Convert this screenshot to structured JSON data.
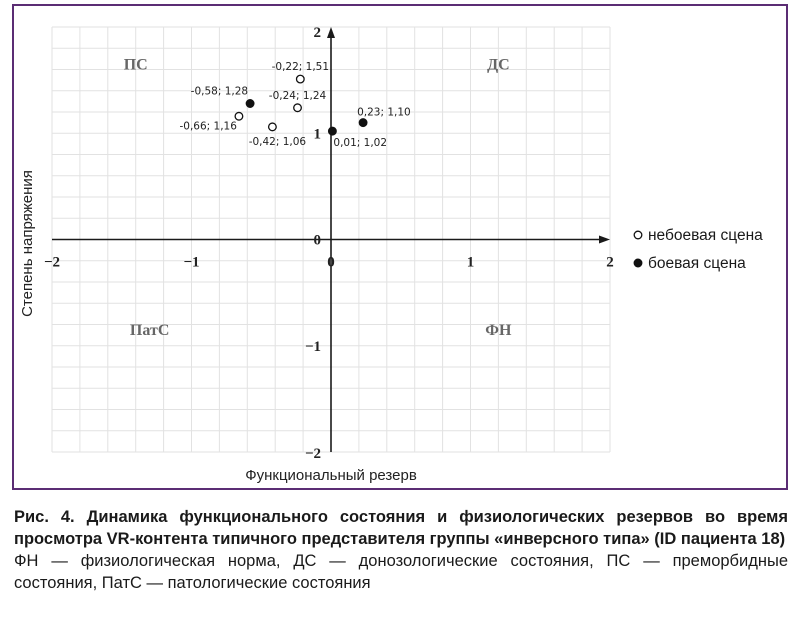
{
  "chart_data": {
    "type": "scatter",
    "title": "",
    "xlabel": "Функциональный резерв",
    "ylabel": "Степень напряжения",
    "xlim": [
      -2,
      2
    ],
    "ylim": [
      -2,
      2
    ],
    "x_ticks": [
      {
        "value": -2,
        "label": "−2"
      },
      {
        "value": -1,
        "label": "−1"
      },
      {
        "value": 0,
        "label": "0"
      },
      {
        "value": 1,
        "label": "1"
      },
      {
        "value": 2,
        "label": "2"
      }
    ],
    "y_ticks": [
      {
        "value": 2,
        "label": "2"
      },
      {
        "value": 1,
        "label": "1"
      },
      {
        "value": 0,
        "label": "0"
      },
      {
        "value": -1,
        "label": "−1"
      },
      {
        "value": -2,
        "label": "−2"
      }
    ],
    "grid": true,
    "legend_position": "right",
    "quadrant_labels": [
      {
        "text": "ПС",
        "x": -1.4,
        "y": 1.6
      },
      {
        "text": "ДС",
        "x": 1.2,
        "y": 1.6
      },
      {
        "text": "ПатС",
        "x": -1.3,
        "y": -0.9
      },
      {
        "text": "ФН",
        "x": 1.2,
        "y": -0.9
      }
    ],
    "series": [
      {
        "name": "небоевая сцена",
        "marker": "open-circle",
        "points": [
          {
            "x": -0.22,
            "y": 1.51,
            "label": "-0,22; 1,51",
            "label_side": "above"
          },
          {
            "x": -0.24,
            "y": 1.24,
            "label": "-0,24; 1,24",
            "label_side": "above"
          },
          {
            "x": -0.66,
            "y": 1.16,
            "label": "-0,66; 1,16",
            "label_side": "below-left"
          },
          {
            "x": -0.42,
            "y": 1.06,
            "label": "-0,42; 1,06",
            "label_side": "below"
          }
        ]
      },
      {
        "name": "боевая сцена",
        "marker": "filled-circle",
        "points": [
          {
            "x": -0.58,
            "y": 1.28,
            "label": "-0,58; 1,28",
            "label_side": "above-left"
          },
          {
            "x": 0.23,
            "y": 1.1,
            "label": "0,23; 1,10",
            "label_side": "above-right"
          },
          {
            "x": 0.01,
            "y": 1.02,
            "label": "0,01; 1,02",
            "label_side": "below-right"
          }
        ]
      }
    ],
    "colors": {
      "frame": "#5b2d74",
      "axis": "#1a1a1a",
      "grid": "#e2e2e2",
      "quadrant_label": "#666666",
      "marker": "#111111"
    }
  },
  "caption": {
    "title": "Рис. 4. Динамика функционального состояния и физиологических резервов во время просмотра VR-контента типичного представителя группы «инверсного типа» (ID пациента 18)",
    "note": "ФН — физиологическая норма, ДС — донозологические состояния, ПС — преморбидные состояния, ПатС — патологические состояния"
  }
}
